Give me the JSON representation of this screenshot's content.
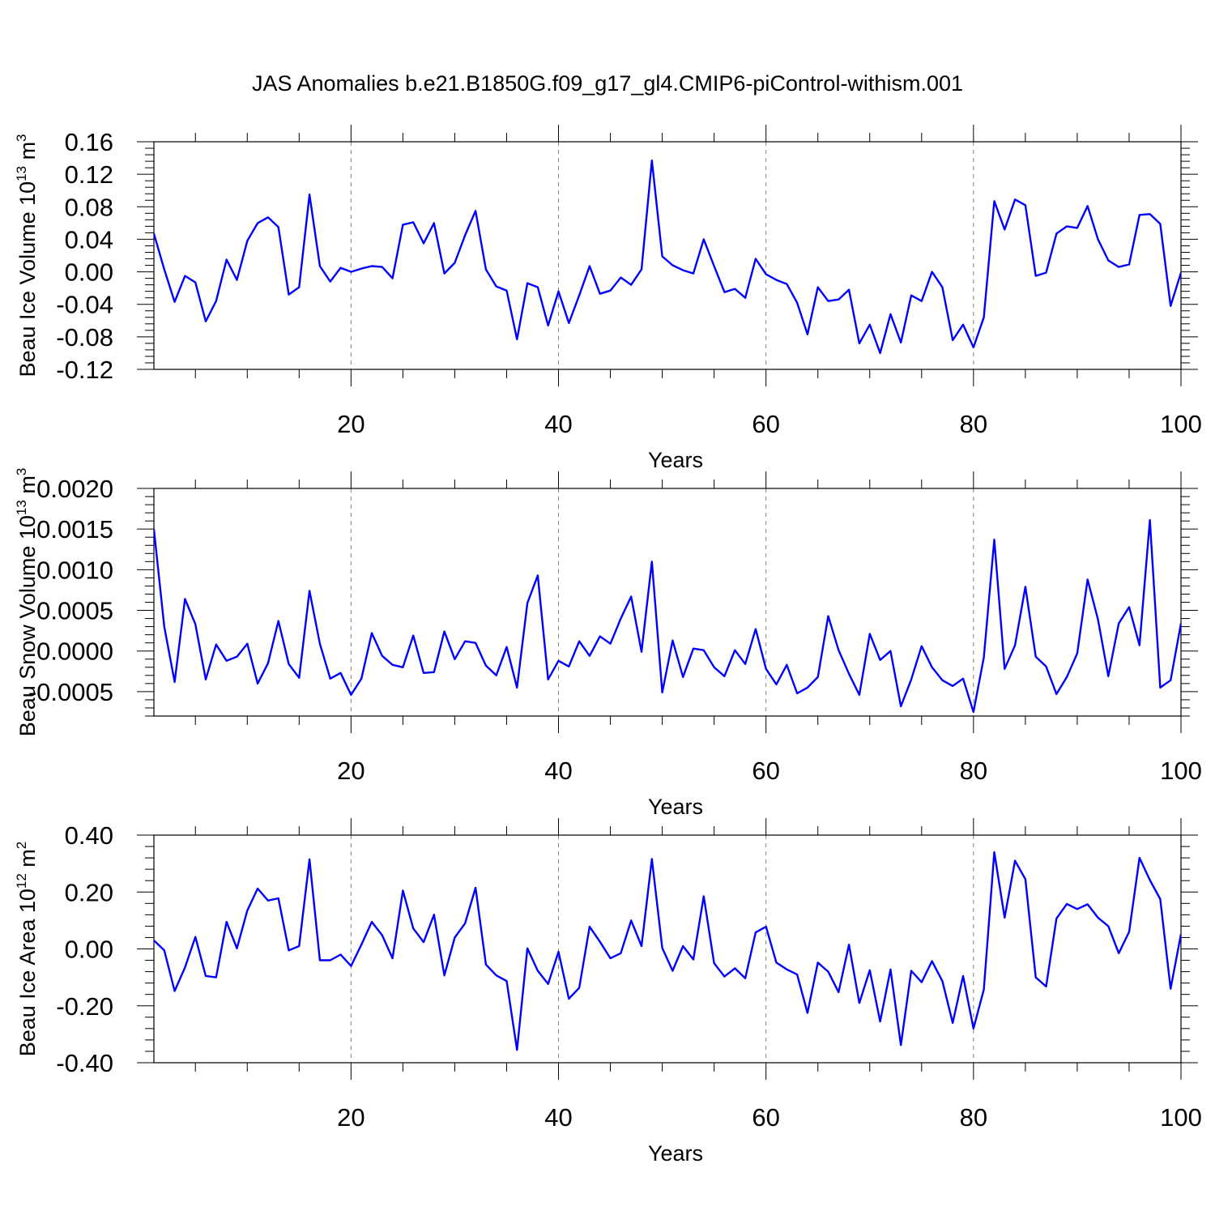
{
  "title": "JAS Anomalies b.e21.B1850G.f09_g17_gl4.CMIP6-piControl-withism.001",
  "colors": {
    "series": "#0000ff",
    "axes": "#000000",
    "grid": "#808080"
  },
  "chart_data": [
    {
      "type": "line",
      "ylabel": "Beau Ice Volume 10",
      "ylabel_exponent": "13",
      "ylabel_unit": "m",
      "ylabel_unit_exponent": "3",
      "xlabel": "Years",
      "xlim": [
        1,
        100
      ],
      "ylim": [
        -0.12,
        0.16
      ],
      "x_ticks": [
        20,
        40,
        60,
        80,
        100
      ],
      "x_tick_labels": [
        "20",
        "40",
        "60",
        "80",
        "100"
      ],
      "y_ticks": [
        -0.12,
        -0.08,
        -0.04,
        0.0,
        0.04,
        0.08,
        0.12,
        0.16
      ],
      "y_tick_labels": [
        "-0.12",
        "-0.08",
        "-0.04",
        "0.00",
        "0.04",
        "0.08",
        "0.12",
        "0.16"
      ],
      "grid": "vertical dashed at major x ticks",
      "series": [
        {
          "values": [
            0.047,
            0.003,
            -0.037,
            -0.005,
            -0.013,
            -0.061,
            -0.036,
            0.015,
            -0.01,
            0.038,
            0.06,
            0.067,
            0.055,
            -0.028,
            -0.019,
            0.095,
            0.007,
            -0.012,
            0.005,
            0.0,
            0.004,
            0.007,
            0.006,
            -0.008,
            0.058,
            0.061,
            0.035,
            0.06,
            -0.002,
            0.011,
            0.045,
            0.075,
            0.003,
            -0.018,
            -0.023,
            -0.083,
            -0.014,
            -0.019,
            -0.066,
            -0.024,
            -0.063,
            -0.029,
            0.007,
            -0.027,
            -0.023,
            -0.007,
            -0.016,
            0.003,
            0.137,
            0.019,
            0.008,
            0.002,
            -0.002,
            0.04,
            0.007,
            -0.025,
            -0.021,
            -0.032,
            0.016,
            -0.003,
            -0.01,
            -0.015,
            -0.038,
            -0.077,
            -0.019,
            -0.036,
            -0.034,
            -0.022,
            -0.088,
            -0.065,
            -0.1,
            -0.052,
            -0.087,
            -0.029,
            -0.036,
            0.0,
            -0.019,
            -0.084,
            -0.065,
            -0.093,
            -0.056,
            0.087,
            0.052,
            0.089,
            0.082,
            -0.005,
            -0.001,
            0.047,
            0.056,
            0.054,
            0.081,
            0.04,
            0.014,
            0.006,
            0.009,
            0.07,
            0.071,
            0.059,
            -0.042,
            -0.001
          ]
        }
      ]
    },
    {
      "type": "line",
      "ylabel": "Beau Snow Volume 10",
      "ylabel_exponent": "13",
      "ylabel_unit": "m",
      "ylabel_unit_exponent": "3",
      "xlabel": "Years",
      "xlim": [
        1,
        100
      ],
      "ylim": [
        -0.0008,
        0.002
      ],
      "x_ticks": [
        20,
        40,
        60,
        80,
        100
      ],
      "x_tick_labels": [
        "20",
        "40",
        "60",
        "80",
        "100"
      ],
      "y_ticks": [
        -0.0005,
        0.0,
        0.0005,
        0.001,
        0.0015,
        0.002
      ],
      "y_tick_labels": [
        "-0.0005",
        "0.0000",
        "0.0005",
        "0.0010",
        "0.0015",
        "0.0020"
      ],
      "grid": "vertical dashed at major x ticks",
      "series": [
        {
          "values": [
            0.0015,
            0.0003,
            -0.00038,
            0.00064,
            0.00033,
            -0.00035,
            8e-05,
            -0.00012,
            -7e-05,
            9e-05,
            -0.0004,
            -0.00015,
            0.00037,
            -0.00016,
            -0.00033,
            0.00074,
            9e-05,
            -0.00034,
            -0.00027,
            -0.00054,
            -0.00034,
            0.00022,
            -6e-05,
            -0.00017,
            -0.0002,
            0.00019,
            -0.00027,
            -0.00026,
            0.00024,
            -0.0001,
            0.00012,
            0.0001,
            -0.00018,
            -0.0003,
            5e-05,
            -0.00045,
            0.00059,
            0.00093,
            -0.00035,
            -0.00012,
            -0.00019,
            0.00012,
            -6e-05,
            0.00018,
            9e-05,
            0.0004,
            0.00067,
            -1e-05,
            0.0011,
            -0.00051,
            0.00013,
            -0.00032,
            3e-05,
            1e-05,
            -0.0002,
            -0.00031,
            1e-05,
            -0.00016,
            0.00027,
            -0.00022,
            -0.00041,
            -0.00017,
            -0.00052,
            -0.00045,
            -0.00032,
            0.00043,
            1e-05,
            -0.00028,
            -0.00054,
            0.00021,
            -0.00011,
            0.0,
            -0.00068,
            -0.00035,
            6e-05,
            -0.0002,
            -0.00036,
            -0.00043,
            -0.00034,
            -0.00075,
            -8e-05,
            0.00137,
            -0.00022,
            7e-05,
            0.00079,
            -7e-05,
            -0.00019,
            -0.00053,
            -0.00032,
            -3e-05,
            0.00088,
            0.00039,
            -0.00031,
            0.00034,
            0.00054,
            7e-05,
            0.00161,
            -0.00045,
            -0.00036,
            0.00034
          ]
        }
      ]
    },
    {
      "type": "line",
      "ylabel": "Beau Ice Area 10",
      "ylabel_exponent": "12",
      "ylabel_unit": "m",
      "ylabel_unit_exponent": "2",
      "xlabel": "Years",
      "xlim": [
        1,
        100
      ],
      "ylim": [
        -0.4,
        0.4
      ],
      "x_ticks": [
        20,
        40,
        60,
        80,
        100
      ],
      "x_tick_labels": [
        "20",
        "40",
        "60",
        "80",
        "100"
      ],
      "y_ticks": [
        -0.4,
        -0.2,
        0.0,
        0.2,
        0.4
      ],
      "y_tick_labels": [
        "-0.40",
        "-0.20",
        "0.00",
        "0.20",
        "0.40"
      ],
      "grid": "vertical dashed at major x ticks",
      "series": [
        {
          "values": [
            0.03,
            -0.005,
            -0.148,
            -0.065,
            0.042,
            -0.095,
            -0.1,
            0.095,
            0.002,
            0.135,
            0.212,
            0.17,
            0.178,
            -0.005,
            0.01,
            0.315,
            -0.04,
            -0.04,
            -0.02,
            -0.06,
            0.015,
            0.095,
            0.048,
            -0.033,
            0.205,
            0.072,
            0.024,
            0.12,
            -0.093,
            0.04,
            0.09,
            0.215,
            -0.055,
            -0.093,
            -0.113,
            -0.355,
            0.002,
            -0.077,
            -0.123,
            -0.01,
            -0.175,
            -0.137,
            0.078,
            0.025,
            -0.033,
            -0.015,
            0.1,
            0.01,
            0.316,
            0.003,
            -0.077,
            0.01,
            -0.037,
            0.185,
            -0.05,
            -0.097,
            -0.068,
            -0.103,
            0.058,
            0.078,
            -0.048,
            -0.072,
            -0.09,
            -0.225,
            -0.048,
            -0.08,
            -0.152,
            0.015,
            -0.19,
            -0.075,
            -0.255,
            -0.072,
            -0.338,
            -0.077,
            -0.117,
            -0.043,
            -0.113,
            -0.26,
            -0.095,
            -0.28,
            -0.143,
            0.34,
            0.11,
            0.31,
            0.245,
            -0.1,
            -0.132,
            0.107,
            0.158,
            0.14,
            0.157,
            0.11,
            0.08,
            -0.015,
            0.06,
            0.32,
            0.242,
            0.175,
            -0.14,
            0.052
          ]
        }
      ]
    }
  ]
}
